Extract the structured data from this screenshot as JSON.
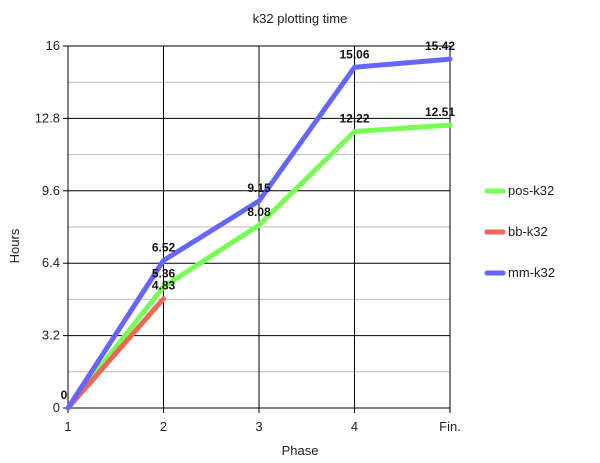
{
  "chart_data": {
    "type": "line",
    "title": "k32 plotting time",
    "xlabel": "Phase",
    "ylabel": "Hours",
    "categories": [
      "1",
      "2",
      "3",
      "4",
      "Fin."
    ],
    "yticks": [
      "0",
      "3.2",
      "6.4",
      "9.6",
      "12.8",
      "16"
    ],
    "ylim": [
      0,
      16
    ],
    "grid": true,
    "legend_position": "right",
    "series": [
      {
        "name": "pos-k32",
        "color": "#77ff55",
        "values": [
          0,
          5.36,
          8.08,
          12.22,
          12.51
        ],
        "labels": [
          "",
          "5.36",
          "8.08",
          "12.22",
          "12.51"
        ]
      },
      {
        "name": "bb-k32",
        "color": "#ee6655",
        "values": [
          0,
          4.83,
          null,
          null,
          null
        ],
        "labels": [
          "",
          "4.83",
          "",
          "",
          ""
        ]
      },
      {
        "name": "mm-k32",
        "color": "#6666ff",
        "values": [
          0,
          6.52,
          9.15,
          15.06,
          15.42
        ],
        "labels": [
          "0",
          "6.52",
          "9.15",
          "15.06",
          "15.42"
        ]
      }
    ]
  }
}
